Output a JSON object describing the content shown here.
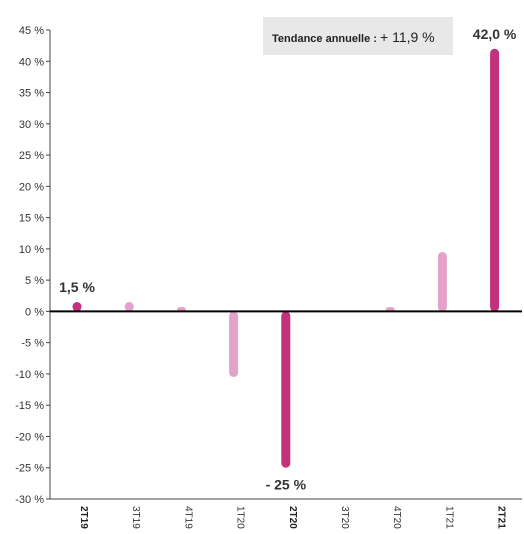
{
  "chart_data": {
    "type": "bar",
    "categories": [
      "2T19",
      "3T19",
      "4T19",
      "1T20",
      "2T20",
      "3T20",
      "4T20",
      "1T21",
      "2T21"
    ],
    "highlighted": [
      "2T19",
      "2T20",
      "2T21"
    ],
    "values": [
      1.5,
      1.5,
      0.7,
      -10.5,
      -25,
      0,
      0.7,
      9.5,
      42.0
    ],
    "ylim": [
      -30,
      45
    ],
    "yticks": [
      45,
      40,
      35,
      30,
      25,
      20,
      15,
      10,
      5,
      0,
      -5,
      -10,
      -15,
      -20,
      -25,
      -30
    ],
    "ytick_labels": [
      "45 %",
      "40 %",
      "35 %",
      "30 %",
      "25 %",
      "20 %",
      "15 %",
      "10 %",
      "5 %",
      "0 %",
      "-5 %",
      "-10 %",
      "-15 %",
      "-20 %",
      "-25 %",
      "-30 %"
    ],
    "data_labels": [
      {
        "category": "2T19",
        "text": "1,5 %"
      },
      {
        "category": "2T20",
        "text": "- 25 %"
      },
      {
        "category": "2T21",
        "text": "42,0 %"
      }
    ],
    "annotation": {
      "prefix": "Tendance annuelle : ",
      "value": "+ 11,9 %"
    },
    "colors": {
      "highlight": "#c2307e",
      "light": "#e4a2cb",
      "zero_line": "#000000",
      "axis": "#444444",
      "annotation_bg": "#e8e8e8"
    }
  }
}
